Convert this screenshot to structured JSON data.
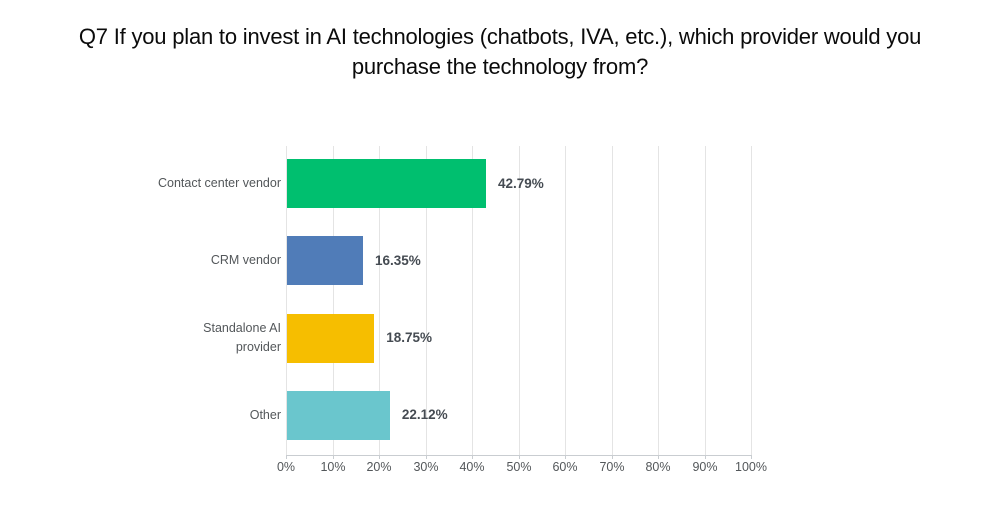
{
  "title": {
    "lines": [
      "Q7 If you plan to invest in AI technologies (chatbots, IVA, etc.), which provider would you",
      "purchase the technology from?"
    ]
  },
  "chart_data": {
    "type": "bar",
    "orientation": "horizontal",
    "title": "Q7 If you plan to invest in AI technologies (chatbots, IVA, etc.), which provider would you purchase the technology from?",
    "categories": [
      "Contact center vendor",
      "CRM vendor",
      "Standalone AI provider",
      "Other"
    ],
    "values": [
      42.79,
      16.35,
      18.75,
      22.12
    ],
    "value_labels": [
      "42.79%",
      "16.35%",
      "18.75%",
      "22.12%"
    ],
    "bar_colors": [
      "#00bf6f",
      "#507cb8",
      "#f6be00",
      "#6ac6cd"
    ],
    "x_axis": {
      "min": 0,
      "max": 100,
      "tick_labels": [
        "0%",
        "10%",
        "20%",
        "30%",
        "40%",
        "50%",
        "60%",
        "70%",
        "80%",
        "90%",
        "100%"
      ],
      "grid": true
    },
    "legend": "none",
    "colors": {
      "grid": "#e4e4e4",
      "axis": "#c9cdd1",
      "category_label": "#53575a",
      "value_label": "#454b52",
      "title_text": "#0b0b0b"
    }
  }
}
